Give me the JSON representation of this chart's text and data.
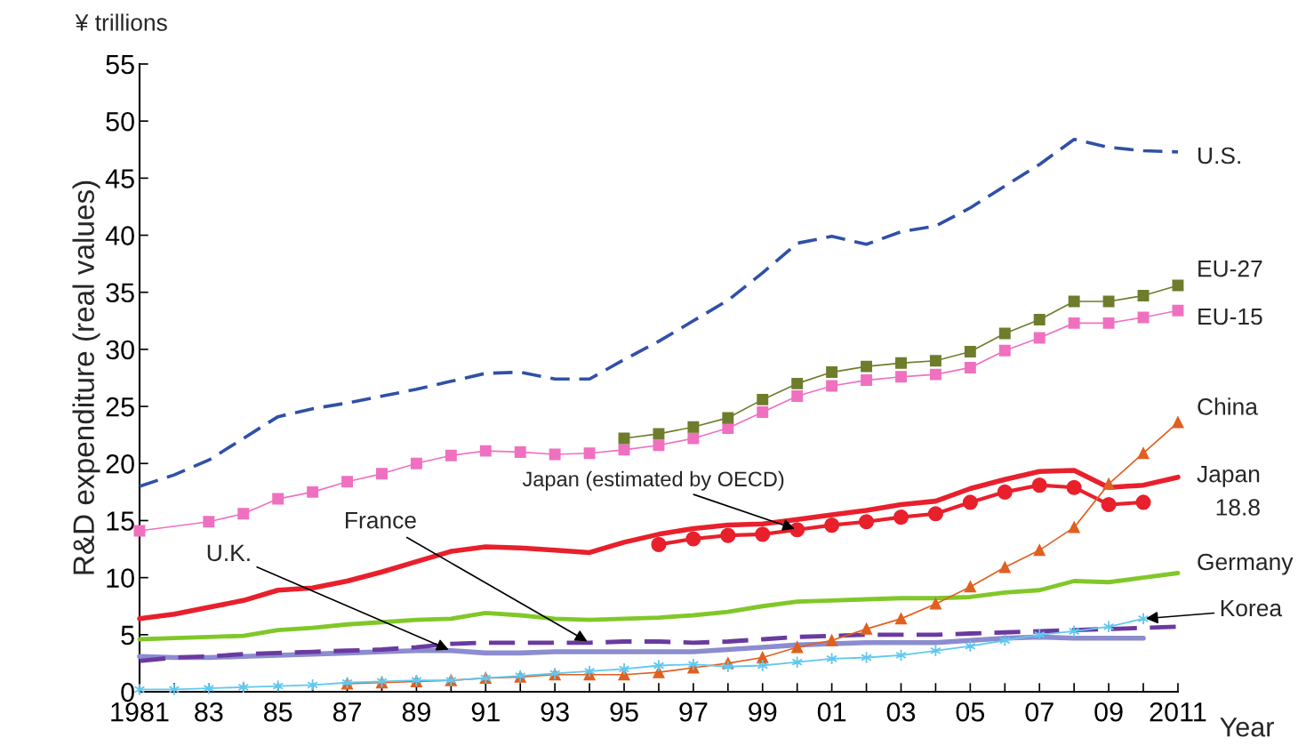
{
  "chart_data": {
    "type": "line",
    "ylabel": "R&D expenditure (real values)",
    "xlabel": "Year",
    "annotations": [
      "¥ trillions",
      {
        "text": "18.8",
        "x": 2011,
        "y": 18.8
      }
    ],
    "x": [
      1981,
      1982,
      1983,
      1984,
      1985,
      1986,
      1987,
      1988,
      1989,
      1990,
      1991,
      1992,
      1993,
      1994,
      1995,
      1996,
      1997,
      1998,
      1999,
      2000,
      2001,
      2002,
      2003,
      2004,
      2005,
      2006,
      2007,
      2008,
      2009,
      2010,
      2011
    ],
    "xlim": [
      1981,
      2011
    ],
    "xticks": [
      1981,
      {
        "value": 1982,
        "label": null
      },
      {
        "value": 1983,
        "label": "83"
      },
      {
        "value": 1984,
        "label": null
      },
      {
        "value": 1985,
        "label": "85"
      },
      {
        "value": 1986,
        "label": null
      },
      {
        "value": 1987,
        "label": "87"
      },
      {
        "value": 1988,
        "label": null
      },
      {
        "value": 1989,
        "label": "89"
      },
      {
        "value": 1990,
        "label": null
      },
      {
        "value": 1991,
        "label": "91"
      },
      {
        "value": 1992,
        "label": null
      },
      {
        "value": 1993,
        "label": "93"
      },
      {
        "value": 1994,
        "label": null
      },
      {
        "value": 1995,
        "label": "95"
      },
      {
        "value": 1996,
        "label": null
      },
      {
        "value": 1997,
        "label": "97"
      },
      {
        "value": 1998,
        "label": null
      },
      {
        "value": 1999,
        "label": "99"
      },
      {
        "value": 2000,
        "label": null
      },
      {
        "value": 2001,
        "label": "01"
      },
      {
        "value": 2002,
        "label": null
      },
      {
        "value": 2003,
        "label": "03"
      },
      {
        "value": 2004,
        "label": null
      },
      {
        "value": 2005,
        "label": "05"
      },
      {
        "value": 2006,
        "label": null
      },
      {
        "value": 2007,
        "label": "07"
      },
      {
        "value": 2008,
        "label": null
      },
      {
        "value": 2009,
        "label": "09"
      },
      {
        "value": 2010,
        "label": null
      },
      2011
    ],
    "ylim": [
      0,
      55
    ],
    "yticks": [
      0,
      5,
      10,
      15,
      20,
      25,
      30,
      35,
      40,
      45,
      50,
      55
    ],
    "grid": false,
    "legend": false,
    "series": [
      {
        "name": "U.S.",
        "color": "#3050a8",
        "line_style": "dashed",
        "marker": "none",
        "values": [
          18.0,
          19.0,
          20.3,
          22.2,
          24.1,
          24.8,
          25.3,
          25.9,
          26.5,
          27.2,
          27.9,
          28.0,
          27.4,
          27.4,
          29.1,
          30.7,
          32.5,
          34.3,
          36.7,
          39.3,
          39.9,
          39.2,
          40.3,
          40.8,
          42.4,
          44.3,
          46.2,
          48.4,
          47.7,
          47.4,
          47.3
        ]
      },
      {
        "name": "EU-27",
        "color": "#6e7d2c",
        "line_style": "solid",
        "marker": "square",
        "values": [
          null,
          null,
          null,
          null,
          null,
          null,
          null,
          null,
          null,
          null,
          null,
          null,
          null,
          null,
          22.2,
          22.6,
          23.2,
          24.0,
          25.6,
          27.0,
          28.0,
          28.5,
          28.8,
          29.0,
          29.8,
          31.4,
          32.6,
          34.2,
          34.2,
          34.7,
          35.6
        ]
      },
      {
        "name": "EU-15",
        "color": "#f070c0",
        "line_style": "solid",
        "marker": "square",
        "values": [
          14.1,
          null,
          14.9,
          15.6,
          16.9,
          17.5,
          18.4,
          19.1,
          20.0,
          20.7,
          21.1,
          21.0,
          20.8,
          20.9,
          21.2,
          21.6,
          22.2,
          23.1,
          24.5,
          25.9,
          26.8,
          27.3,
          27.6,
          27.8,
          28.4,
          29.9,
          31.0,
          32.3,
          32.3,
          32.8,
          33.4
        ]
      },
      {
        "name": "China",
        "color": "#e06020",
        "line_style": "solid",
        "marker": "triangle",
        "values": [
          null,
          null,
          null,
          null,
          null,
          null,
          0.7,
          0.8,
          0.9,
          1.0,
          1.2,
          1.3,
          1.5,
          1.5,
          1.5,
          1.7,
          2.1,
          2.5,
          3.0,
          3.9,
          4.5,
          5.5,
          6.4,
          7.7,
          9.2,
          10.9,
          12.4,
          14.4,
          18.2,
          20.9,
          23.6
        ]
      },
      {
        "name": "Japan",
        "color": "#e8202c",
        "line_style": "solid",
        "marker": "none",
        "values": [
          6.4,
          6.8,
          7.4,
          8.0,
          8.9,
          9.1,
          9.7,
          10.5,
          11.4,
          12.3,
          12.7,
          12.6,
          12.4,
          12.2,
          13.1,
          13.8,
          14.3,
          14.6,
          14.7,
          15.1,
          15.5,
          15.9,
          16.4,
          16.7,
          17.8,
          18.6,
          19.3,
          19.4,
          17.9,
          18.1,
          18.8
        ]
      },
      {
        "name": "Japan (estimated by OECD)",
        "color": "#e8202c",
        "line_style": "solid",
        "marker": "circle",
        "values": [
          null,
          null,
          null,
          null,
          null,
          null,
          null,
          null,
          null,
          null,
          null,
          null,
          null,
          null,
          null,
          12.9,
          13.4,
          13.7,
          13.8,
          14.2,
          14.6,
          14.9,
          15.3,
          15.6,
          16.6,
          17.5,
          18.1,
          17.9,
          16.4,
          16.6,
          null
        ]
      },
      {
        "name": "Germany",
        "color": "#80c828",
        "line_style": "solid",
        "marker": "none",
        "values": [
          4.6,
          4.7,
          4.8,
          4.9,
          5.4,
          5.6,
          5.9,
          6.1,
          6.3,
          6.4,
          6.9,
          6.7,
          6.4,
          6.3,
          6.4,
          6.5,
          6.7,
          7.0,
          7.5,
          7.9,
          8.0,
          8.1,
          8.2,
          8.2,
          8.3,
          8.7,
          8.9,
          9.7,
          9.6,
          10.0,
          10.4
        ]
      },
      {
        "name": "Korea",
        "color": "#60c8f0",
        "line_style": "solid",
        "marker": "cross",
        "values": [
          0.2,
          0.2,
          0.3,
          0.4,
          0.5,
          0.6,
          0.8,
          0.9,
          1.0,
          1.0,
          1.2,
          1.4,
          1.6,
          1.8,
          2.0,
          2.3,
          2.4,
          2.2,
          2.3,
          2.6,
          2.9,
          3.0,
          3.2,
          3.6,
          4.0,
          4.5,
          5.0,
          5.3,
          5.7,
          6.4,
          null
        ]
      },
      {
        "name": "France",
        "color": "#6a3aa0",
        "line_style": "dashed",
        "marker": "none",
        "values": [
          2.7,
          3.0,
          3.1,
          3.3,
          3.4,
          3.5,
          3.6,
          3.7,
          3.9,
          4.2,
          4.3,
          4.3,
          4.3,
          4.3,
          4.4,
          4.4,
          4.3,
          4.4,
          4.6,
          4.8,
          4.9,
          5.0,
          5.0,
          5.0,
          5.1,
          5.2,
          5.3,
          5.4,
          5.5,
          5.6,
          5.7
        ]
      },
      {
        "name": "U.K.",
        "color": "#8c8cd0",
        "line_style": "solid",
        "marker": "none",
        "values": [
          3.1,
          3.0,
          3.0,
          3.1,
          3.2,
          3.3,
          3.4,
          3.5,
          3.6,
          3.6,
          3.4,
          3.4,
          3.5,
          3.5,
          3.5,
          3.5,
          3.5,
          3.7,
          3.9,
          4.1,
          4.2,
          4.3,
          4.3,
          4.3,
          4.5,
          4.7,
          4.8,
          4.7,
          4.7,
          4.7,
          null
        ]
      }
    ]
  }
}
